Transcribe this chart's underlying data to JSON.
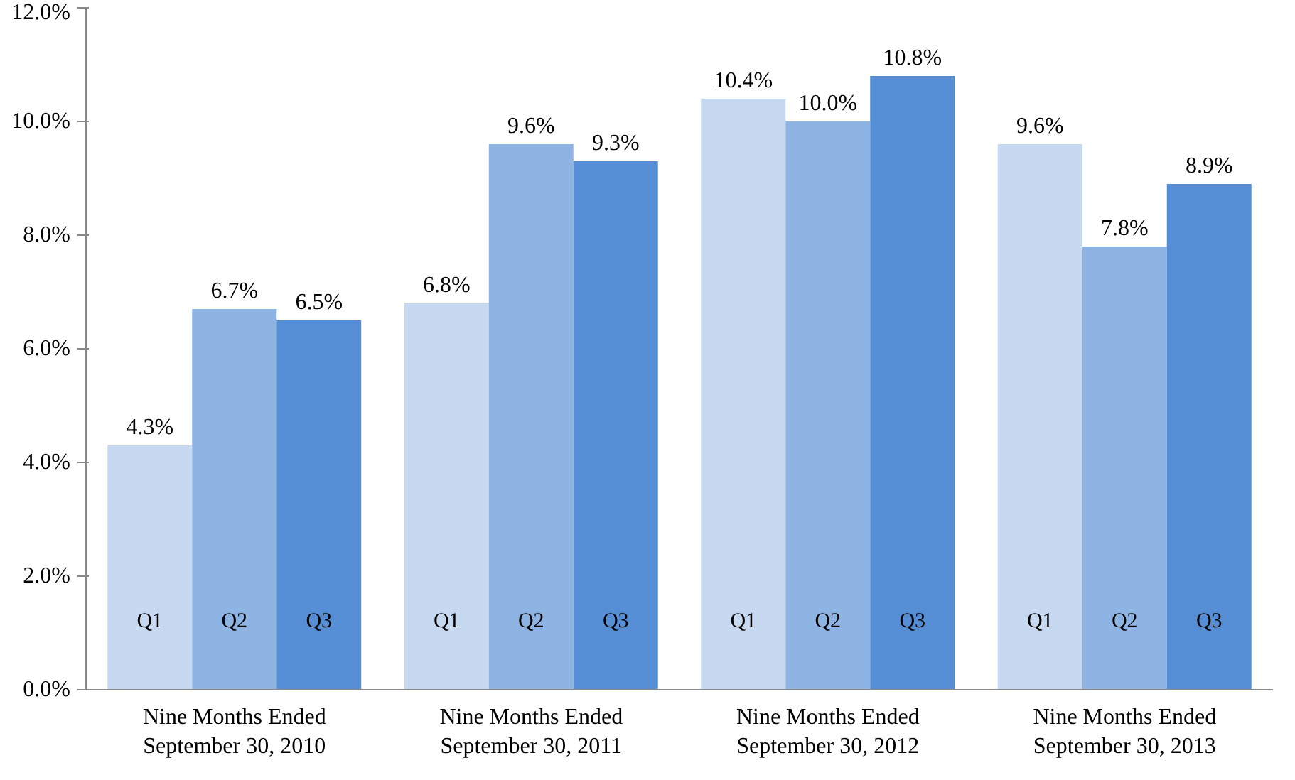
{
  "chart_data": {
    "type": "bar",
    "categories": [
      "Nine Months Ended\nSeptember 30, 2010",
      "Nine Months Ended\nSeptember 30, 2011",
      "Nine Months Ended\nSeptember 30, 2012",
      "Nine Months Ended\nSeptember 30, 2013"
    ],
    "series": [
      {
        "name": "Q1",
        "color": "#c6d9f1",
        "values": [
          4.3,
          6.8,
          10.4,
          9.6
        ],
        "value_labels": [
          "4.3%",
          "6.8%",
          "10.4%",
          "9.6%"
        ]
      },
      {
        "name": "Q2",
        "color": "#8eb4e3",
        "values": [
          6.7,
          9.6,
          10.0,
          7.8
        ],
        "value_labels": [
          "6.7%",
          "9.6%",
          "10.0%",
          "7.8%"
        ]
      },
      {
        "name": "Q3",
        "color": "#558ed5",
        "values": [
          6.5,
          9.3,
          10.8,
          8.9
        ],
        "value_labels": [
          "6.5%",
          "9.3%",
          "10.8%",
          "8.9%"
        ]
      }
    ],
    "ylim": [
      0,
      12
    ],
    "yticks": [
      {
        "value": 0,
        "label": "0.0%"
      },
      {
        "value": 2,
        "label": "2.0%"
      },
      {
        "value": 4,
        "label": "4.0%"
      },
      {
        "value": 6,
        "label": "6.0%"
      },
      {
        "value": 8,
        "label": "8.0%"
      },
      {
        "value": 10,
        "label": "10.0%"
      },
      {
        "value": 12,
        "label": "12.0%"
      }
    ],
    "grid": false
  }
}
